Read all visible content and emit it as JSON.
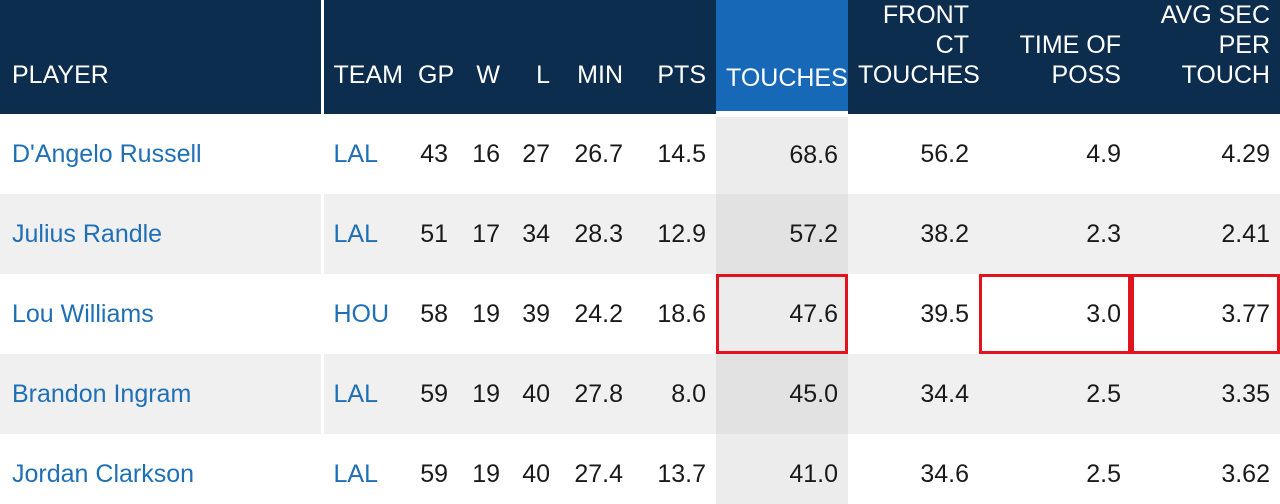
{
  "columns": {
    "player": "PLAYER",
    "team": "TEAM",
    "gp": "GP",
    "w": "W",
    "l": "L",
    "min": "MIN",
    "pts": "PTS",
    "touches": "TOUCHES",
    "front_ct_touches": "FRONT CT TOUCHES",
    "time_of_poss": "TIME OF POSS",
    "avg_sec_per_touch": "AVG SEC PER TOUCH"
  },
  "sorted_column": "touches",
  "colors": {
    "header_bg": "#0c2d4e",
    "sorted_header_bg": "#1769b8",
    "link": "#1f6fb6",
    "highlight_border": "#e0141e"
  },
  "rows": [
    {
      "player": "D'Angelo Russell",
      "team": "LAL",
      "gp": "43",
      "w": "16",
      "l": "27",
      "min": "26.7",
      "pts": "14.5",
      "touches": "68.6",
      "front_ct_touches": "56.2",
      "time_of_poss": "4.9",
      "avg_sec_per_touch": "4.29"
    },
    {
      "player": "Julius Randle",
      "team": "LAL",
      "gp": "51",
      "w": "17",
      "l": "34",
      "min": "28.3",
      "pts": "12.9",
      "touches": "57.2",
      "front_ct_touches": "38.2",
      "time_of_poss": "2.3",
      "avg_sec_per_touch": "2.41"
    },
    {
      "player": "Lou Williams",
      "team": "HOU",
      "gp": "58",
      "w": "19",
      "l": "39",
      "min": "24.2",
      "pts": "18.6",
      "touches": "47.6",
      "front_ct_touches": "39.5",
      "time_of_poss": "3.0",
      "avg_sec_per_touch": "3.77"
    },
    {
      "player": "Brandon Ingram",
      "team": "LAL",
      "gp": "59",
      "w": "19",
      "l": "40",
      "min": "27.8",
      "pts": "8.0",
      "touches": "45.0",
      "front_ct_touches": "34.4",
      "time_of_poss": "2.5",
      "avg_sec_per_touch": "3.35"
    },
    {
      "player": "Jordan Clarkson",
      "team": "LAL",
      "gp": "59",
      "w": "19",
      "l": "40",
      "min": "27.4",
      "pts": "13.7",
      "touches": "41.0",
      "front_ct_touches": "34.6",
      "time_of_poss": "2.5",
      "avg_sec_per_touch": "3.62"
    }
  ],
  "highlighted_cells": [
    {
      "row": 2,
      "column": "touches"
    },
    {
      "row": 2,
      "column": "time_of_poss"
    },
    {
      "row": 2,
      "column": "avg_sec_per_touch"
    }
  ]
}
